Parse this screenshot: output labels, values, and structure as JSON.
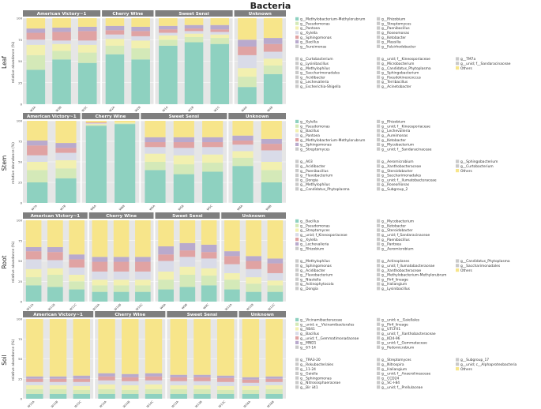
{
  "figure_title": "Bacteria",
  "colors": {
    "panel_bg": "#e6e6e6",
    "header_bg": "#7f7f7f",
    "header_text": "#ffffff",
    "grid": "#ffffff",
    "axis_text": "#444444"
  },
  "chart_data": [
    {
      "type": "bar",
      "stacked": true,
      "row": "Leaf",
      "ylabel": "relative abundance (%)",
      "ylim": [
        0,
        100
      ],
      "y_ticks": [
        0,
        25,
        50,
        75,
        100
      ],
      "groups": [
        {
          "name": "American Victory~1",
          "categories": [
            "W3A",
            "W3B",
            "W3C"
          ]
        },
        {
          "name": "Cherry Wine",
          "categories": [
            "W2A",
            "W2B"
          ]
        },
        {
          "name": "Sweet Sensi",
          "categories": [
            "W1A",
            "W1B",
            "W1C"
          ]
        },
        {
          "name": "Unknown",
          "categories": [
            "W4A",
            "W4B"
          ]
        }
      ],
      "legend": [
        "g__Methylobacterium-Methylorubrum",
        "g__Pseudomonas",
        "g__Pantoea",
        "g__Xylella",
        "g__Sphingomonas",
        "g__Bacillus",
        "g__Aureimonas",
        "g__Rhizobium",
        "g__Streptomyces",
        "g__Paenibacillus",
        "g__Roseomonas",
        "g__Ketobacter",
        "g__Massilia",
        "g__Falsirhodobacter",
        "g__Curtobacterium",
        "g__Lysinibacillus",
        "g__Methylophilus",
        "g__Saccharimonadales",
        "g__Acidibacter",
        "g__Lechevalieria",
        "g__Escherichia-Shigella",
        "g__unid; f__Kineosporiaceae",
        "g__Microbacterium",
        "g__Candidatus_Phytoplasma",
        "g__Sphingobacterium",
        "g__Pseudokineococcus",
        "g__Terribacillus",
        "g__Acinetobacter",
        "g__TM7a",
        "g__unid; f__Sandaracinaceae",
        "Others"
      ],
      "series": [
        {
          "name": "g__Methylobacterium-Methylorubrum",
          "color": "#8ed1c0",
          "values": [
            40,
            52,
            48,
            58,
            52,
            68,
            72,
            70,
            20,
            35
          ]
        },
        {
          "name": "g__Pseudomonas",
          "color": "#d4e9b8",
          "values": [
            17,
            10,
            12,
            10,
            13,
            7,
            6,
            7,
            12,
            10
          ]
        },
        {
          "name": "g__Pantoea",
          "color": "#f2f0b0",
          "values": [
            12,
            8,
            9,
            8,
            9,
            5,
            4,
            4,
            10,
            8
          ]
        },
        {
          "name": "g__Xylella",
          "color": "#d9dbe8",
          "values": [
            6,
            4,
            5,
            5,
            5,
            3,
            3,
            3,
            15,
            8
          ]
        },
        {
          "name": "g__Sphingomonas",
          "color": "#e0a3a3",
          "values": [
            8,
            10,
            11,
            5,
            6,
            4,
            3,
            3,
            10,
            9
          ]
        },
        {
          "name": "g__Bacillus",
          "color": "#b9aacd",
          "values": [
            5,
            5,
            5,
            5,
            5,
            4,
            4,
            5,
            8,
            7
          ]
        },
        {
          "name": "Others",
          "color": "#f7e58a",
          "values": [
            12,
            11,
            10,
            9,
            10,
            9,
            8,
            8,
            25,
            23
          ]
        }
      ]
    },
    {
      "type": "bar",
      "stacked": true,
      "row": "Stem",
      "ylabel": "relative abundance (%)",
      "ylim": [
        0,
        100
      ],
      "y_ticks": [
        0,
        25,
        50,
        75,
        100
      ],
      "groups": [
        {
          "name": "American Victory~1",
          "categories": [
            "W7A",
            "W7B"
          ]
        },
        {
          "name": "Cherry Wine",
          "categories": [
            "W6A",
            "W6B"
          ]
        },
        {
          "name": "Sweet Sensi",
          "categories": [
            "W5A",
            "W5B",
            "W5C"
          ]
        },
        {
          "name": "Unknown",
          "categories": [
            "W8A",
            "W8B"
          ]
        }
      ],
      "legend": [
        "g__Xylella",
        "g__Pseudomonas",
        "g__Bacillus",
        "g__Pantoea",
        "g__Methylobacterium-Methylorubrum",
        "g__Sphingomonas",
        "g__Streptomyces",
        "g__Rhizobium",
        "g__unid; f__Kineosporiaceae",
        "g__Lechevalieria",
        "g__Aureimonas",
        "g__Ketobacter",
        "g__Mycobacterium",
        "g__unid; f__Sandaracinaceae",
        "g__A03",
        "g__Acidibacter",
        "g__Paenibacillus",
        "g__Flavobacterium",
        "g__Dongia",
        "g__Methylophilus",
        "g__Candidatus_Phytoplasma",
        "g__Aeromicrobium",
        "g__Xanthobacteraceae",
        "g__Steroidobacter",
        "g__Saccharimonadales",
        "g__unid; f__Ilumatobacteraceae",
        "g__Roseomonas",
        "g__Subgroup_2",
        "g__Sphingobacterium",
        "g__Curtobacterium",
        "Others"
      ],
      "series": [
        {
          "name": "g__Xylella",
          "color": "#8ed1c0",
          "values": [
            25,
            30,
            94,
            96,
            40,
            35,
            38,
            45,
            25
          ]
        },
        {
          "name": "g__Pseudomonas",
          "color": "#d4e9b8",
          "values": [
            15,
            12,
            1,
            1,
            10,
            12,
            11,
            10,
            15
          ]
        },
        {
          "name": "g__Bacillus",
          "color": "#f2f0b0",
          "values": [
            10,
            10,
            1,
            1,
            10,
            11,
            10,
            8,
            10
          ]
        },
        {
          "name": "g__Pantoea",
          "color": "#d9dbe8",
          "values": [
            8,
            9,
            1,
            0,
            8,
            9,
            9,
            8,
            14
          ]
        },
        {
          "name": "g__Methylobacterium-Methylorubrum",
          "color": "#e0a3a3",
          "values": [
            12,
            6,
            1,
            0,
            6,
            7,
            6,
            5,
            8
          ]
        },
        {
          "name": "g__Sphingomonas",
          "color": "#b9aacd",
          "values": [
            6,
            6,
            0,
            0,
            6,
            6,
            6,
            6,
            6
          ]
        },
        {
          "name": "Others",
          "color": "#f7e58a",
          "values": [
            24,
            27,
            2,
            2,
            20,
            20,
            20,
            18,
            22
          ]
        }
      ]
    },
    {
      "type": "bar",
      "stacked": true,
      "row": "Root",
      "ylabel": "relative abundance (%)",
      "ylim": [
        0,
        100
      ],
      "y_ticks": [
        0,
        25,
        50,
        75,
        100
      ],
      "groups": [
        {
          "name": "American Victory~1",
          "categories": [
            "W11A",
            "W11B",
            "W11C"
          ]
        },
        {
          "name": "Cherry Wine",
          "categories": [
            "W10A",
            "W10B",
            "W10C"
          ]
        },
        {
          "name": "Sweet Sensi",
          "categories": [
            "W9A",
            "W9B",
            "W9C"
          ]
        },
        {
          "name": "Unknown",
          "categories": [
            "W12A",
            "W12B",
            "W12C"
          ]
        }
      ],
      "legend": [
        "g__Bacillus",
        "g__Pseudomonas",
        "g__Streptomyces",
        "g__unid; f_Kineosporiaceae",
        "g__Xylella",
        "g__Lechevalieria",
        "g__Rhizobium",
        "g__Mycobacterium",
        "g__Ketobacter",
        "g__Steroidobacter",
        "g__unid; f_Sandaracinaceae",
        "g__Paenibacillus",
        "g__Pantoea",
        "g__Aeromicrobium",
        "g__Methylophilus",
        "g__Sphingomonas",
        "g__Acidibacter",
        "g__Flavobacterium",
        "g__Niastella",
        "g__Actinophytocola",
        "g__Dongia",
        "g__Actinoplanes",
        "g__unid; f_Ilumatobacteraceae",
        "g__Xanthobacteraceae",
        "g__Methylobacterium-Methylorubrum",
        "g__Pir4_lineage",
        "g__Haliangium",
        "g__Lysinibacillus",
        "g__Candidatus_Phytoplasma",
        "g__Saccharimonadales",
        "Others"
      ],
      "series": [
        {
          "name": "g__Bacillus",
          "color": "#8ed1c0",
          "values": [
            20,
            18,
            15,
            12,
            12,
            12,
            15,
            18,
            20,
            15,
            12,
            12
          ]
        },
        {
          "name": "g__Pseudomonas",
          "color": "#d4e9b8",
          "values": [
            10,
            15,
            10,
            8,
            8,
            8,
            12,
            15,
            12,
            12,
            10,
            8
          ]
        },
        {
          "name": "g__Streptomyces",
          "color": "#f2f0b0",
          "values": [
            10,
            8,
            8,
            7,
            7,
            7,
            10,
            10,
            9,
            8,
            8,
            6
          ]
        },
        {
          "name": "g__unid; f_Kineosporiaceae",
          "color": "#d9dbe8",
          "values": [
            12,
            10,
            9,
            10,
            10,
            10,
            13,
            12,
            12,
            11,
            10,
            9
          ]
        },
        {
          "name": "g__Xylella",
          "color": "#e0a3a3",
          "values": [
            10,
            10,
            10,
            12,
            12,
            12,
            8,
            8,
            8,
            10,
            10,
            12
          ]
        },
        {
          "name": "g__Lechevalieria",
          "color": "#b9aacd",
          "values": [
            5,
            6,
            6,
            6,
            6,
            6,
            10,
            9,
            9,
            6,
            6,
            6
          ]
        },
        {
          "name": "Others",
          "color": "#f7e58a",
          "values": [
            33,
            33,
            42,
            45,
            45,
            45,
            32,
            28,
            30,
            38,
            44,
            47
          ]
        }
      ]
    },
    {
      "type": "bar",
      "stacked": true,
      "row": "Soil",
      "ylabel": "relative abundance (%)",
      "ylim": [
        0,
        100
      ],
      "y_ticks": [
        0,
        25,
        50,
        75,
        100
      ],
      "groups": [
        {
          "name": "American Victory~1",
          "categories": [
            "W15A",
            "W15B",
            "W15C"
          ]
        },
        {
          "name": "Cherry Wine",
          "categories": [
            "W14A",
            "W14B",
            "W14C"
          ]
        },
        {
          "name": "Sweet Sensi",
          "categories": [
            "W13A",
            "W13B",
            "W13C"
          ]
        },
        {
          "name": "Unknown",
          "categories": [
            "W16A",
            "W16B"
          ]
        }
      ],
      "legend": [
        "g__Vicinamibacteraceae",
        "g__unid; o__Vicinamibacterales",
        "g__RB41",
        "g__Bacillus",
        "g__unid; f__Gemmatimonadaceae",
        "g__MND1",
        "g__67-14",
        "g__unid; o__Gaiellales",
        "g__Pir4_lineage",
        "g__UTCFX1",
        "g__unid; f__Xanthobacteraceae",
        "g__KD4-96",
        "g__unid; f__Gemmataceae",
        "g__Pedomicrobium",
        "g__TRA3-20",
        "g__Rokubacteriales",
        "g__11-24",
        "g__Gaiella",
        "g__Sphingomonas",
        "g__Nitrososphaeraceae",
        "g__Bir ii41",
        "g__Streptomyces",
        "g__Nitrospira",
        "g__Haliangium",
        "g__unid; f__Anaerolineaceae",
        "g__CCD24",
        "g__SC-I-84",
        "g__unid; f__Prellulaceae",
        "g__Subgroup_17",
        "g__unid; c__Alphaproteobacteria",
        "Others"
      ],
      "series": [
        {
          "name": "g__Vicinamibacteraceae",
          "color": "#8ed1c0",
          "values": [
            6,
            6,
            6,
            6,
            6,
            6,
            6,
            6,
            6,
            6,
            6
          ]
        },
        {
          "name": "g__unid; o__Vicinamibacterales",
          "color": "#d4e9b8",
          "values": [
            6,
            6,
            5,
            6,
            5,
            6,
            6,
            6,
            5,
            5,
            6
          ]
        },
        {
          "name": "g__RB41",
          "color": "#f2f0b0",
          "values": [
            5,
            5,
            5,
            6,
            6,
            6,
            5,
            5,
            5,
            5,
            5
          ]
        },
        {
          "name": "g__Bacillus",
          "color": "#d9dbe8",
          "values": [
            4,
            4,
            5,
            5,
            5,
            5,
            5,
            5,
            5,
            4,
            4
          ]
        },
        {
          "name": "g__unid; f__Gemmatimonadaceae",
          "color": "#e0a3a3",
          "values": [
            4,
            4,
            4,
            5,
            5,
            5,
            5,
            5,
            5,
            4,
            4
          ]
        },
        {
          "name": "g__MND1",
          "color": "#b9aacd",
          "values": [
            3,
            3,
            4,
            4,
            4,
            4,
            3,
            3,
            3,
            3,
            3
          ]
        },
        {
          "name": "Others",
          "color": "#f7e58a",
          "values": [
            72,
            72,
            71,
            68,
            69,
            68,
            70,
            70,
            71,
            73,
            72
          ]
        }
      ]
    }
  ]
}
